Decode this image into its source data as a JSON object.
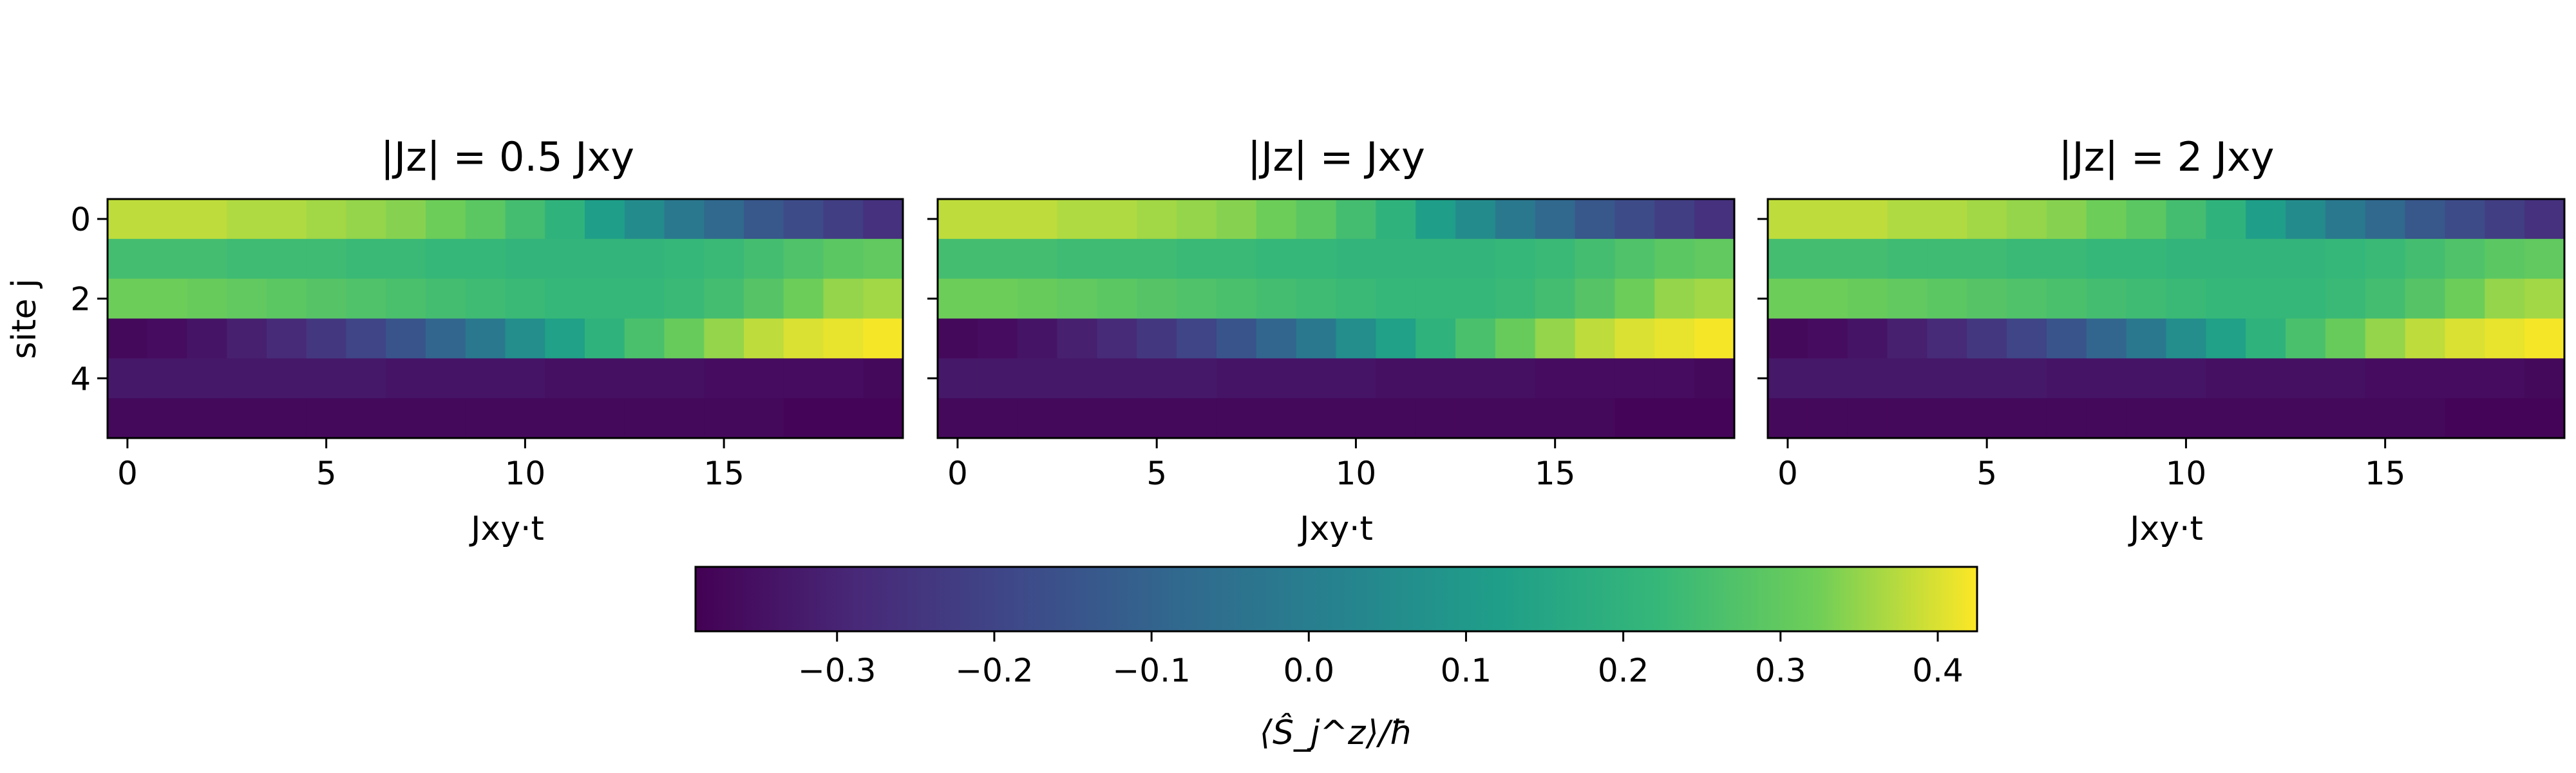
{
  "chart_data": {
    "type": "heatmap",
    "shared_ylabel": "site j",
    "panels": [
      {
        "title": "|Jz| = 0.5 Jxy",
        "xlabel": "Jxy·t",
        "x_ticks": [
          0,
          5,
          10,
          15
        ],
        "y_ticks": [
          0,
          2,
          4
        ],
        "time_steps": 20,
        "sites": 6,
        "values": [
          [
            0.38,
            0.38,
            0.38,
            0.37,
            0.37,
            0.36,
            0.35,
            0.34,
            0.32,
            0.29,
            0.25,
            0.2,
            0.12,
            0.05,
            -0.02,
            -0.08,
            -0.14,
            -0.18,
            -0.22,
            -0.26
          ],
          [
            0.25,
            0.25,
            0.25,
            0.24,
            0.24,
            0.24,
            0.23,
            0.23,
            0.22,
            0.22,
            0.21,
            0.21,
            0.21,
            0.21,
            0.22,
            0.23,
            0.25,
            0.27,
            0.29,
            0.3
          ],
          [
            0.32,
            0.32,
            0.31,
            0.3,
            0.29,
            0.28,
            0.27,
            0.26,
            0.25,
            0.24,
            0.23,
            0.22,
            0.22,
            0.22,
            0.23,
            0.25,
            0.28,
            0.32,
            0.35,
            0.36
          ],
          [
            -0.37,
            -0.36,
            -0.34,
            -0.31,
            -0.28,
            -0.24,
            -0.2,
            -0.15,
            -0.09,
            -0.02,
            0.06,
            0.13,
            0.2,
            0.26,
            0.31,
            0.35,
            0.38,
            0.4,
            0.41,
            0.42
          ],
          [
            -0.33,
            -0.33,
            -0.33,
            -0.33,
            -0.33,
            -0.33,
            -0.33,
            -0.34,
            -0.34,
            -0.34,
            -0.34,
            -0.35,
            -0.35,
            -0.35,
            -0.35,
            -0.36,
            -0.36,
            -0.36,
            -0.36,
            -0.37
          ],
          [
            -0.37,
            -0.37,
            -0.37,
            -0.37,
            -0.37,
            -0.37,
            -0.37,
            -0.37,
            -0.37,
            -0.37,
            -0.37,
            -0.37,
            -0.37,
            -0.37,
            -0.37,
            -0.37,
            -0.37,
            -0.38,
            -0.38,
            -0.38
          ]
        ]
      },
      {
        "title": "|Jz| = Jxy",
        "xlabel": "Jxy·t",
        "x_ticks": [
          0,
          5,
          10,
          15
        ],
        "y_ticks": [
          0,
          2,
          4
        ],
        "time_steps": 20,
        "sites": 6,
        "values": [
          [
            0.38,
            0.38,
            0.38,
            0.37,
            0.37,
            0.36,
            0.35,
            0.34,
            0.32,
            0.29,
            0.25,
            0.2,
            0.12,
            0.05,
            -0.02,
            -0.08,
            -0.14,
            -0.18,
            -0.22,
            -0.26
          ],
          [
            0.25,
            0.25,
            0.25,
            0.24,
            0.24,
            0.24,
            0.23,
            0.23,
            0.22,
            0.22,
            0.21,
            0.21,
            0.21,
            0.21,
            0.22,
            0.23,
            0.25,
            0.27,
            0.29,
            0.3
          ],
          [
            0.32,
            0.32,
            0.31,
            0.3,
            0.29,
            0.28,
            0.27,
            0.26,
            0.25,
            0.24,
            0.23,
            0.22,
            0.22,
            0.22,
            0.23,
            0.25,
            0.28,
            0.32,
            0.35,
            0.36
          ],
          [
            -0.37,
            -0.36,
            -0.34,
            -0.31,
            -0.28,
            -0.24,
            -0.2,
            -0.15,
            -0.09,
            -0.02,
            0.06,
            0.13,
            0.2,
            0.26,
            0.31,
            0.35,
            0.38,
            0.4,
            0.41,
            0.42
          ],
          [
            -0.33,
            -0.33,
            -0.33,
            -0.33,
            -0.33,
            -0.33,
            -0.33,
            -0.34,
            -0.34,
            -0.34,
            -0.34,
            -0.35,
            -0.35,
            -0.35,
            -0.35,
            -0.36,
            -0.36,
            -0.36,
            -0.36,
            -0.37
          ],
          [
            -0.37,
            -0.37,
            -0.37,
            -0.37,
            -0.37,
            -0.37,
            -0.37,
            -0.37,
            -0.37,
            -0.37,
            -0.37,
            -0.37,
            -0.37,
            -0.37,
            -0.37,
            -0.37,
            -0.37,
            -0.38,
            -0.38,
            -0.38
          ]
        ]
      },
      {
        "title": "|Jz| = 2 Jxy",
        "xlabel": "Jxy·t",
        "x_ticks": [
          0,
          5,
          10,
          15
        ],
        "y_ticks": [
          0,
          2,
          4
        ],
        "time_steps": 20,
        "sites": 6,
        "values": [
          [
            0.38,
            0.38,
            0.38,
            0.37,
            0.37,
            0.36,
            0.35,
            0.34,
            0.32,
            0.29,
            0.25,
            0.2,
            0.12,
            0.05,
            -0.02,
            -0.08,
            -0.14,
            -0.18,
            -0.22,
            -0.26
          ],
          [
            0.25,
            0.25,
            0.25,
            0.24,
            0.24,
            0.24,
            0.23,
            0.23,
            0.22,
            0.22,
            0.21,
            0.21,
            0.21,
            0.21,
            0.22,
            0.23,
            0.25,
            0.27,
            0.29,
            0.3
          ],
          [
            0.32,
            0.32,
            0.31,
            0.3,
            0.29,
            0.28,
            0.27,
            0.26,
            0.25,
            0.24,
            0.23,
            0.22,
            0.22,
            0.22,
            0.23,
            0.25,
            0.28,
            0.32,
            0.35,
            0.36
          ],
          [
            -0.37,
            -0.36,
            -0.34,
            -0.31,
            -0.28,
            -0.24,
            -0.2,
            -0.15,
            -0.09,
            -0.02,
            0.06,
            0.13,
            0.2,
            0.26,
            0.31,
            0.35,
            0.38,
            0.4,
            0.41,
            0.42
          ],
          [
            -0.33,
            -0.33,
            -0.33,
            -0.33,
            -0.33,
            -0.33,
            -0.33,
            -0.34,
            -0.34,
            -0.34,
            -0.34,
            -0.35,
            -0.35,
            -0.35,
            -0.35,
            -0.36,
            -0.36,
            -0.36,
            -0.36,
            -0.37
          ],
          [
            -0.37,
            -0.37,
            -0.37,
            -0.37,
            -0.37,
            -0.37,
            -0.37,
            -0.37,
            -0.37,
            -0.37,
            -0.37,
            -0.37,
            -0.37,
            -0.37,
            -0.37,
            -0.37,
            -0.37,
            -0.38,
            -0.38,
            -0.38
          ]
        ]
      }
    ],
    "colorbar": {
      "label": "⟨Ŝ_j^z⟩/ħ",
      "vmin": -0.39,
      "vmax": 0.425,
      "ticks": [
        -0.3,
        -0.2,
        -0.1,
        0.0,
        0.1,
        0.2,
        0.3,
        0.4
      ],
      "tick_labels": [
        "−0.3",
        "−0.2",
        "−0.1",
        "0.0",
        "0.1",
        "0.2",
        "0.3",
        "0.4"
      ],
      "colormap": "viridis"
    }
  }
}
